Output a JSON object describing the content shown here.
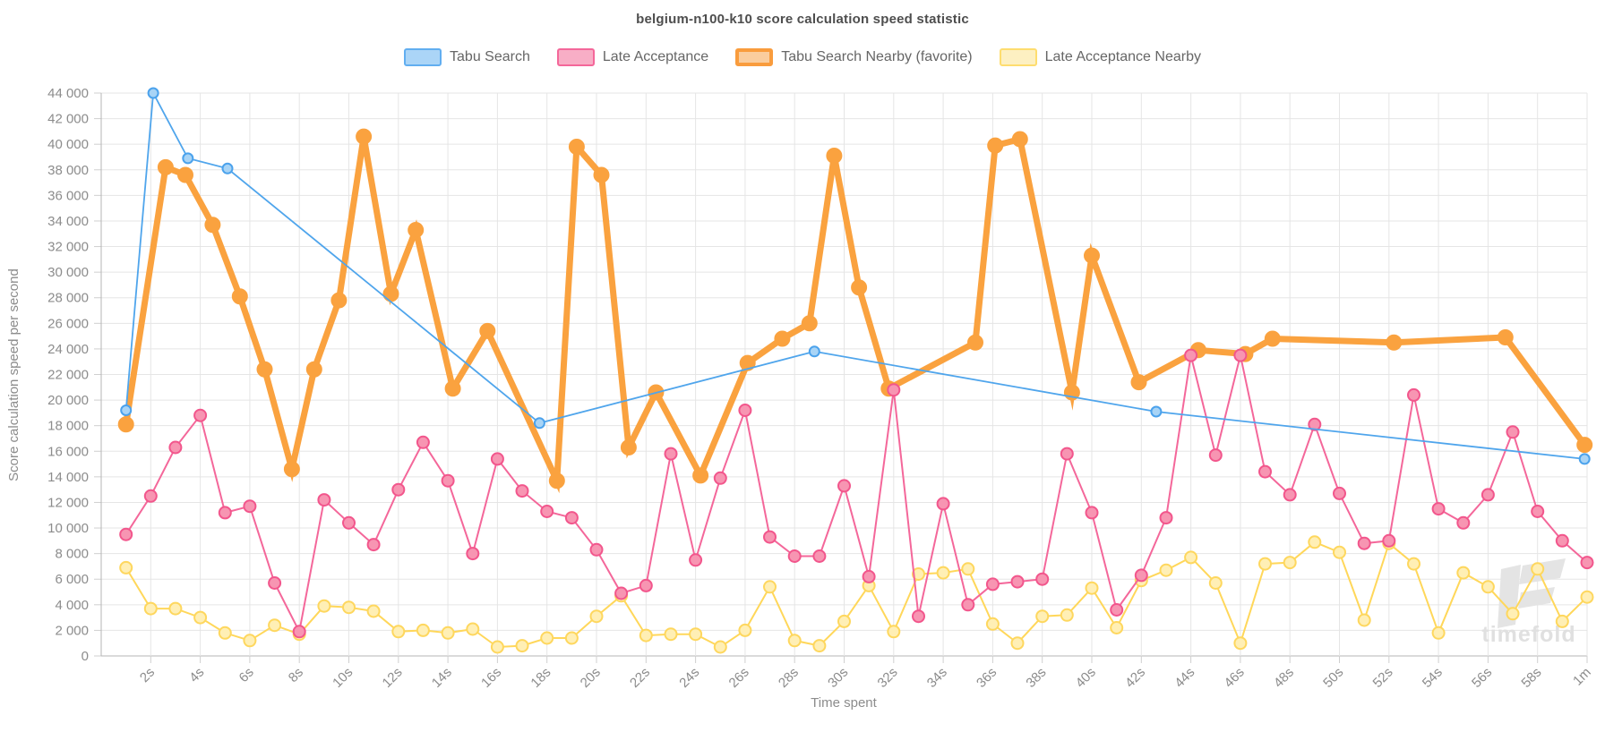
{
  "chart_data": {
    "type": "line",
    "title": "belgium-n100-k10 score calculation speed statistic",
    "xlabel": "Time spent",
    "ylabel": "Score calculation speed per second",
    "watermark": "timefold",
    "grid": true,
    "legend_position": "top",
    "x_axis": {
      "unit": "seconds",
      "range": [
        0,
        60
      ],
      "tick_seconds": [
        2,
        4,
        6,
        8,
        10,
        12,
        14,
        16,
        18,
        20,
        22,
        24,
        26,
        28,
        30,
        32,
        34,
        36,
        38,
        40,
        42,
        44,
        46,
        48,
        50,
        52,
        54,
        56,
        58,
        60
      ],
      "tick_labels": [
        "2s",
        "4s",
        "6s",
        "8s",
        "10s",
        "12s",
        "14s",
        "16s",
        "18s",
        "20s",
        "22s",
        "24s",
        "26s",
        "28s",
        "30s",
        "32s",
        "34s",
        "36s",
        "38s",
        "40s",
        "42s",
        "44s",
        "46s",
        "48s",
        "50s",
        "52s",
        "54s",
        "56s",
        "58s",
        "1m"
      ]
    },
    "y_axis": {
      "min": 0,
      "max": 44000,
      "step": 2000,
      "tick_labels": [
        "0",
        "2 000",
        "4 000",
        "6 000",
        "8 000",
        "10 000",
        "12 000",
        "14 000",
        "16 000",
        "18 000",
        "20 000",
        "22 000",
        "24 000",
        "26 000",
        "28 000",
        "30 000",
        "32 000",
        "34 000",
        "36 000",
        "38 000",
        "40 000",
        "42 000",
        "44 000"
      ]
    },
    "series": [
      {
        "name": "Tabu Search",
        "line_color": "#4fa5ec",
        "line_width": 1.8,
        "marker": {
          "r": 5.5,
          "fill": "#a8d4f6",
          "stroke": "#4ba2ec",
          "stroke_width": 2
        },
        "points": [
          [
            1,
            19200
          ],
          [
            2.1,
            44000
          ],
          [
            3.5,
            38900
          ],
          [
            5.1,
            38100
          ],
          [
            17.7,
            18200
          ],
          [
            28.8,
            23800
          ],
          [
            42.6,
            19100
          ],
          [
            59.9,
            15400
          ]
        ]
      },
      {
        "name": "Late Acceptance",
        "line_color": "#f4679a",
        "line_width": 2,
        "marker": {
          "r": 6.5,
          "fill": "#f795b2",
          "stroke": "#f2568c",
          "stroke_width": 2
        },
        "points": [
          [
            1,
            9500
          ],
          [
            2,
            12500
          ],
          [
            3,
            16300
          ],
          [
            4,
            18800
          ],
          [
            5,
            11200
          ],
          [
            6,
            11700
          ],
          [
            7,
            5700
          ],
          [
            8,
            1900
          ],
          [
            9,
            12200
          ],
          [
            10,
            10400
          ],
          [
            11,
            8700
          ],
          [
            12,
            13000
          ],
          [
            13,
            16700
          ],
          [
            14,
            13700
          ],
          [
            15,
            8000
          ],
          [
            16,
            15400
          ],
          [
            17,
            12900
          ],
          [
            18,
            11300
          ],
          [
            19,
            10800
          ],
          [
            20,
            8300
          ],
          [
            21,
            4900
          ],
          [
            22,
            5500
          ],
          [
            23,
            15800
          ],
          [
            24,
            7500
          ],
          [
            25,
            13900
          ],
          [
            26,
            19200
          ],
          [
            27,
            9300
          ],
          [
            28,
            7800
          ],
          [
            29,
            7800
          ],
          [
            30,
            13300
          ],
          [
            31,
            6200
          ],
          [
            32,
            20800
          ],
          [
            33,
            3100
          ],
          [
            34,
            11900
          ],
          [
            35,
            4000
          ],
          [
            36,
            5600
          ],
          [
            37,
            5800
          ],
          [
            38,
            6000
          ],
          [
            39,
            15800
          ],
          [
            40,
            11200
          ],
          [
            41,
            3600
          ],
          [
            42,
            6300
          ],
          [
            43,
            10800
          ],
          [
            44,
            23500
          ],
          [
            45,
            15700
          ],
          [
            46,
            23500
          ],
          [
            47,
            14400
          ],
          [
            48,
            12600
          ],
          [
            49,
            18100
          ],
          [
            50,
            12700
          ],
          [
            51,
            8800
          ],
          [
            52,
            9000
          ],
          [
            53,
            20400
          ],
          [
            54,
            11500
          ],
          [
            55,
            10400
          ],
          [
            56,
            12600
          ],
          [
            57,
            17500
          ],
          [
            58,
            11300
          ],
          [
            59,
            9000
          ],
          [
            60,
            7300
          ]
        ]
      },
      {
        "name": "Tabu Search Nearby (favorite)",
        "favorite": true,
        "line_color": "#faa23f",
        "line_width": 7,
        "marker": {
          "r": 8.5,
          "fill": "#faa23f",
          "stroke": "#faa23f",
          "stroke_width": 1
        },
        "points": [
          [
            1,
            18100
          ],
          [
            2.6,
            38200
          ],
          [
            3.4,
            37600
          ],
          [
            4.5,
            33700
          ],
          [
            5.6,
            28100
          ],
          [
            6.6,
            22400
          ],
          [
            7.7,
            14600
          ],
          [
            8.6,
            22400
          ],
          [
            9.6,
            27800
          ],
          [
            10.6,
            40600
          ],
          [
            11.7,
            28300
          ],
          [
            12.7,
            33300
          ],
          [
            14.2,
            20900
          ],
          [
            15.6,
            25400
          ],
          [
            18.4,
            13700
          ],
          [
            19.2,
            39800
          ],
          [
            20.2,
            37600
          ],
          [
            21.3,
            16300
          ],
          [
            22.4,
            20600
          ],
          [
            24.2,
            14100
          ],
          [
            26.1,
            22900
          ],
          [
            27.5,
            24800
          ],
          [
            28.6,
            26000
          ],
          [
            29.6,
            39100
          ],
          [
            30.6,
            28800
          ],
          [
            31.8,
            20900
          ],
          [
            35.3,
            24500
          ],
          [
            36.1,
            39900
          ],
          [
            37.1,
            40400
          ],
          [
            39.2,
            20600
          ],
          [
            40,
            31300
          ],
          [
            41.9,
            21400
          ],
          [
            44.3,
            23900
          ],
          [
            46.2,
            23600
          ],
          [
            47.3,
            24800
          ],
          [
            52.2,
            24500
          ],
          [
            56.7,
            24900
          ],
          [
            59.9,
            16500
          ]
        ]
      },
      {
        "name": "Late Acceptance Nearby",
        "line_color": "#ffd75a",
        "line_width": 2,
        "marker": {
          "r": 6.5,
          "fill": "#ffefb5",
          "stroke": "#fed75e",
          "stroke_width": 2
        },
        "points": [
          [
            1,
            6900
          ],
          [
            2,
            3700
          ],
          [
            3,
            3700
          ],
          [
            4,
            3000
          ],
          [
            5,
            1800
          ],
          [
            6,
            1200
          ],
          [
            7,
            2400
          ],
          [
            8,
            1700
          ],
          [
            9,
            3900
          ],
          [
            10,
            3800
          ],
          [
            11,
            3500
          ],
          [
            12,
            1900
          ],
          [
            13,
            2000
          ],
          [
            14,
            1800
          ],
          [
            15,
            2100
          ],
          [
            16,
            700
          ],
          [
            17,
            800
          ],
          [
            18,
            1400
          ],
          [
            19,
            1400
          ],
          [
            20,
            3100
          ],
          [
            21,
            4700
          ],
          [
            22,
            1600
          ],
          [
            23,
            1700
          ],
          [
            24,
            1700
          ],
          [
            25,
            700
          ],
          [
            26,
            2000
          ],
          [
            27,
            5400
          ],
          [
            28,
            1200
          ],
          [
            29,
            800
          ],
          [
            30,
            2700
          ],
          [
            31,
            5500
          ],
          [
            32,
            1900
          ],
          [
            33,
            6400
          ],
          [
            34,
            6500
          ],
          [
            35,
            6800
          ],
          [
            36,
            2500
          ],
          [
            37,
            1000
          ],
          [
            38,
            3100
          ],
          [
            39,
            3200
          ],
          [
            40,
            5300
          ],
          [
            41,
            2200
          ],
          [
            42,
            5900
          ],
          [
            43,
            6700
          ],
          [
            44,
            7700
          ],
          [
            45,
            5700
          ],
          [
            46,
            1000
          ],
          [
            47,
            7200
          ],
          [
            48,
            7300
          ],
          [
            49,
            8900
          ],
          [
            50,
            8100
          ],
          [
            51,
            2800
          ],
          [
            52,
            8800
          ],
          [
            53,
            7200
          ],
          [
            54,
            1800
          ],
          [
            55,
            6500
          ],
          [
            56,
            5400
          ],
          [
            57,
            3300
          ],
          [
            58,
            6800
          ],
          [
            59,
            2700
          ],
          [
            60,
            4600
          ]
        ]
      }
    ]
  },
  "legend": [
    {
      "label": "Tabu Search",
      "fill": "#abd5f7",
      "border": "#61aef0",
      "border_width": 2
    },
    {
      "label": "Late Acceptance",
      "fill": "#f8aec6",
      "border": "#f4679a",
      "border_width": 2
    },
    {
      "label": "Tabu Search Nearby (favorite)",
      "fill": "#facd9e",
      "border": "#f99c3d",
      "border_width": 4
    },
    {
      "label": "Late Acceptance Nearby",
      "fill": "#fdf0c2",
      "border": "#fedd6f",
      "border_width": 2
    }
  ]
}
